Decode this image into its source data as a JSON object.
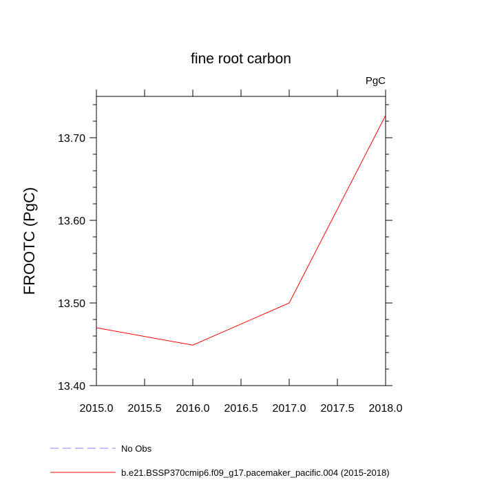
{
  "chart_data": {
    "type": "line",
    "title": "fine root carbon",
    "units_label": "PgC",
    "ylabel": "FROOTC  (PgC)",
    "xlabel": "",
    "xlim": [
      2015.0,
      2018.0
    ],
    "ylim": [
      13.4,
      13.75
    ],
    "x_ticks": [
      2015.0,
      2015.5,
      2016.0,
      2016.5,
      2017.0,
      2017.5,
      2018.0
    ],
    "x_tick_labels": [
      "2015.0",
      "2015.5",
      "2016.0",
      "2016.5",
      "2017.0",
      "2017.5",
      "2018.0"
    ],
    "y_ticks": [
      13.4,
      13.5,
      13.6,
      13.7
    ],
    "y_tick_labels": [
      "13.40",
      "13.50",
      "13.60",
      "13.70"
    ],
    "grid": false,
    "legend_position": "bottom",
    "series": [
      {
        "name": "No Obs",
        "color": "#8080ff",
        "dash": "dashed",
        "x": [],
        "y": []
      },
      {
        "name": "b.e21.BSSP370cmip6.f09_g17.pacemaker_pacific.004 (2015-2018)",
        "color": "#ff0000",
        "dash": "solid",
        "x": [
          2015.0,
          2016.0,
          2017.0,
          2018.0
        ],
        "y": [
          13.47,
          13.449,
          13.5,
          13.727
        ]
      }
    ]
  }
}
